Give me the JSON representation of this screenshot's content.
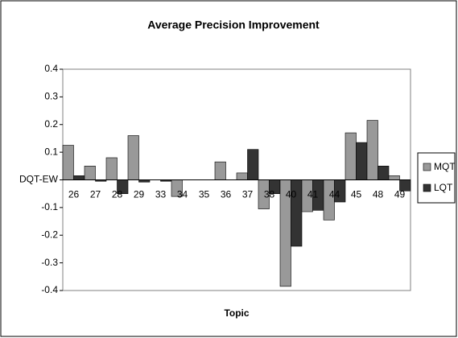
{
  "chart_data": {
    "type": "bar",
    "title": "Average Precision Improvement",
    "x_label": "Topic",
    "categories": [
      "26",
      "27",
      "28",
      "29",
      "33",
      "34",
      "35",
      "36",
      "37",
      "38",
      "40",
      "41",
      "44",
      "45",
      "48",
      "49"
    ],
    "series": [
      {
        "name": "MQT",
        "color": "#999999",
        "values": [
          0.125,
          0.05,
          0.08,
          0.16,
          0,
          -0.06,
          0,
          0.065,
          0.025,
          -0.105,
          -0.385,
          -0.115,
          -0.145,
          0.17,
          0.215,
          0.015
        ]
      },
      {
        "name": "LQT",
        "color": "#333333",
        "values": [
          0.015,
          -0.005,
          -0.05,
          -0.008,
          -0.005,
          0,
          0,
          0,
          0.11,
          -0.05,
          -0.24,
          -0.11,
          -0.08,
          0.135,
          0.05,
          -0.04
        ]
      }
    ],
    "ylim": [
      -0.4,
      0.4
    ],
    "yticks": [
      -0.4,
      -0.3,
      -0.2,
      -0.1,
      {
        "value": 0,
        "label": "DQT-EW"
      },
      0.1,
      0.2,
      0.3,
      0.4
    ],
    "grid": false,
    "legend": "right"
  }
}
